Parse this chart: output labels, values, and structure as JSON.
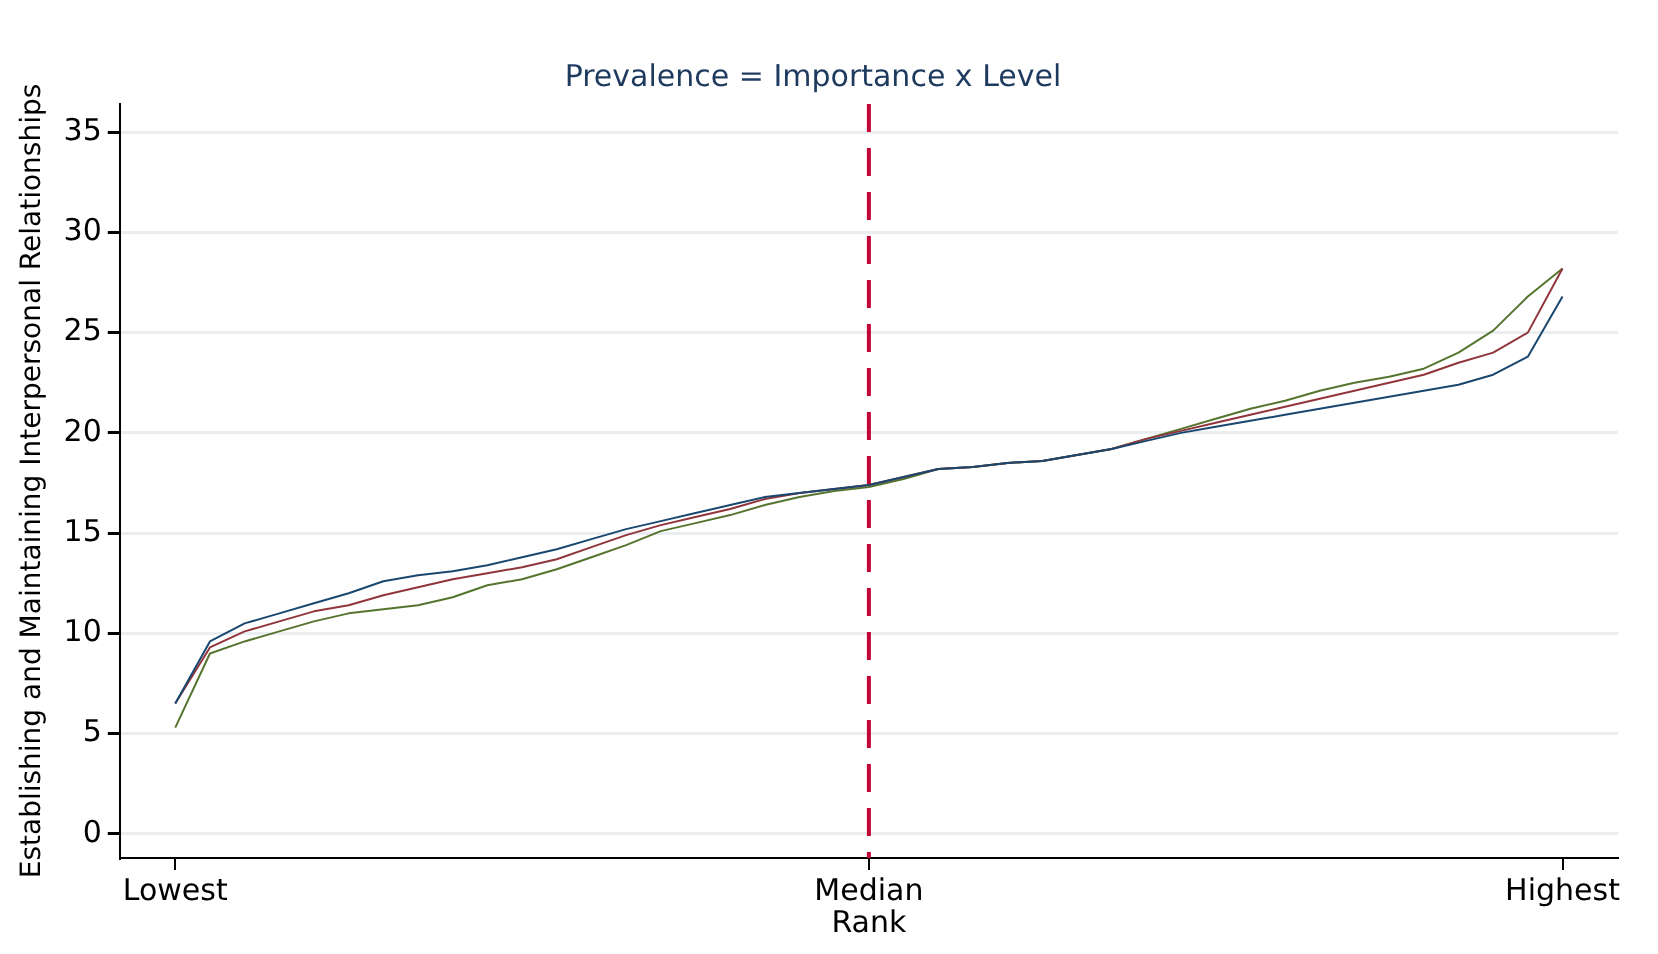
{
  "chart_data": {
    "type": "line",
    "title": "Prevalence = Importance x Level",
    "xlabel": "Rank",
    "ylabel": "Establishing and Maintaining Interpersonal Relationships",
    "categories": [
      "Lowest",
      null,
      null,
      null,
      null,
      null,
      null,
      null,
      null,
      null,
      null,
      null,
      null,
      null,
      null,
      null,
      null,
      null,
      null,
      null,
      "Median",
      null,
      null,
      null,
      null,
      null,
      null,
      null,
      null,
      null,
      null,
      null,
      null,
      null,
      null,
      null,
      null,
      null,
      null,
      null,
      "Highest"
    ],
    "ylim": [
      -1.2,
      36.4
    ],
    "yticks": [
      0,
      5,
      10,
      15,
      20,
      25,
      30,
      35
    ],
    "grid": "y",
    "legend": false,
    "marker": "none",
    "line_style": "solid",
    "ref_lines": [
      {
        "axis": "x",
        "value": "Median",
        "color": "#c10534",
        "line_style": "dashed"
      }
    ],
    "series": [
      {
        "color": "#1a476f",
        "values": [
          6.5,
          9.6,
          10.5,
          11.0,
          11.5,
          12.0,
          12.6,
          12.9,
          13.1,
          13.4,
          13.8,
          14.2,
          14.7,
          15.2,
          15.6,
          16.0,
          16.4,
          16.8,
          17.0,
          17.2,
          17.4,
          17.8,
          18.2,
          18.3,
          18.5,
          18.6,
          18.9,
          19.2,
          19.6,
          20.0,
          20.3,
          20.6,
          20.9,
          21.2,
          21.5,
          21.8,
          22.1,
          22.4,
          22.9,
          23.8,
          26.8
        ]
      },
      {
        "color": "#90353b",
        "values": [
          6.5,
          9.3,
          10.1,
          10.6,
          11.1,
          11.4,
          11.9,
          12.3,
          12.7,
          13.0,
          13.3,
          13.7,
          14.3,
          14.9,
          15.4,
          15.8,
          16.2,
          16.7,
          17.0,
          17.2,
          17.4,
          17.8,
          18.2,
          18.3,
          18.5,
          18.6,
          18.9,
          19.2,
          19.7,
          20.1,
          20.5,
          20.9,
          21.3,
          21.7,
          22.1,
          22.5,
          22.9,
          23.5,
          24.0,
          25.0,
          28.2
        ]
      },
      {
        "color": "#55752f",
        "values": [
          5.3,
          9.0,
          9.6,
          10.1,
          10.6,
          11.0,
          11.2,
          11.4,
          11.8,
          12.4,
          12.7,
          13.2,
          13.8,
          14.4,
          15.1,
          15.5,
          15.9,
          16.4,
          16.8,
          17.1,
          17.3,
          17.7,
          18.2,
          18.3,
          18.5,
          18.6,
          18.9,
          19.2,
          19.7,
          20.2,
          20.7,
          21.2,
          21.6,
          22.1,
          22.5,
          22.8,
          23.2,
          24.0,
          25.1,
          26.8,
          28.2
        ]
      }
    ]
  }
}
